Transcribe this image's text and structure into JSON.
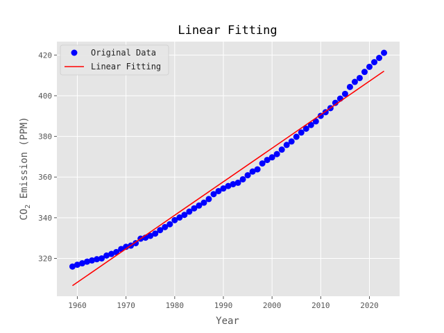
{
  "chart_data": {
    "type": "scatter",
    "title": "Linear Fitting",
    "xlabel": "Year",
    "ylabel_main": "CO",
    "ylabel_sub": "2",
    "ylabel_rest": " Emission (PPM)",
    "xlim": [
      1955.8,
      2026.2
    ],
    "ylim": [
      301.4,
      426.6
    ],
    "xticks": [
      1960,
      1970,
      1980,
      1990,
      2000,
      2010,
      2020
    ],
    "yticks": [
      320,
      340,
      360,
      380,
      400,
      420
    ],
    "grid": true,
    "legend_position": "top-left",
    "background": "#e5e5e5",
    "grid_color": "#ffffff",
    "series": [
      {
        "name": "Original Data",
        "kind": "scatter",
        "color": "#0000ff",
        "x": [
          1959,
          1960,
          1961,
          1962,
          1963,
          1964,
          1965,
          1966,
          1967,
          1968,
          1969,
          1970,
          1971,
          1972,
          1973,
          1974,
          1975,
          1976,
          1977,
          1978,
          1979,
          1980,
          1981,
          1982,
          1983,
          1984,
          1985,
          1986,
          1987,
          1988,
          1989,
          1990,
          1991,
          1992,
          1993,
          1994,
          1995,
          1996,
          1997,
          1998,
          1999,
          2000,
          2001,
          2002,
          2003,
          2004,
          2005,
          2006,
          2007,
          2008,
          2009,
          2010,
          2011,
          2012,
          2013,
          2014,
          2015,
          2016,
          2017,
          2018,
          2019,
          2020,
          2021,
          2022,
          2023
        ],
        "y": [
          316.0,
          316.9,
          317.6,
          318.4,
          319.0,
          319.6,
          320.0,
          321.4,
          322.2,
          323.1,
          324.6,
          325.7,
          326.3,
          327.5,
          329.7,
          330.2,
          331.1,
          332.2,
          333.9,
          335.4,
          336.8,
          338.8,
          340.1,
          341.4,
          343.0,
          344.6,
          346.0,
          347.4,
          349.2,
          351.6,
          353.1,
          354.4,
          355.6,
          356.5,
          357.2,
          358.9,
          360.9,
          362.7,
          363.8,
          366.7,
          368.4,
          369.7,
          371.3,
          373.5,
          375.8,
          377.5,
          379.8,
          381.9,
          383.8,
          385.6,
          387.4,
          390.1,
          391.9,
          393.9,
          396.5,
          398.6,
          400.9,
          404.3,
          406.8,
          408.7,
          411.7,
          414.2,
          416.5,
          418.6,
          421.1
        ]
      },
      {
        "name": "Linear Fitting",
        "kind": "line",
        "color": "#ff0000",
        "x": [
          1959,
          2023
        ],
        "y": [
          306.6,
          412.1
        ]
      }
    ]
  }
}
